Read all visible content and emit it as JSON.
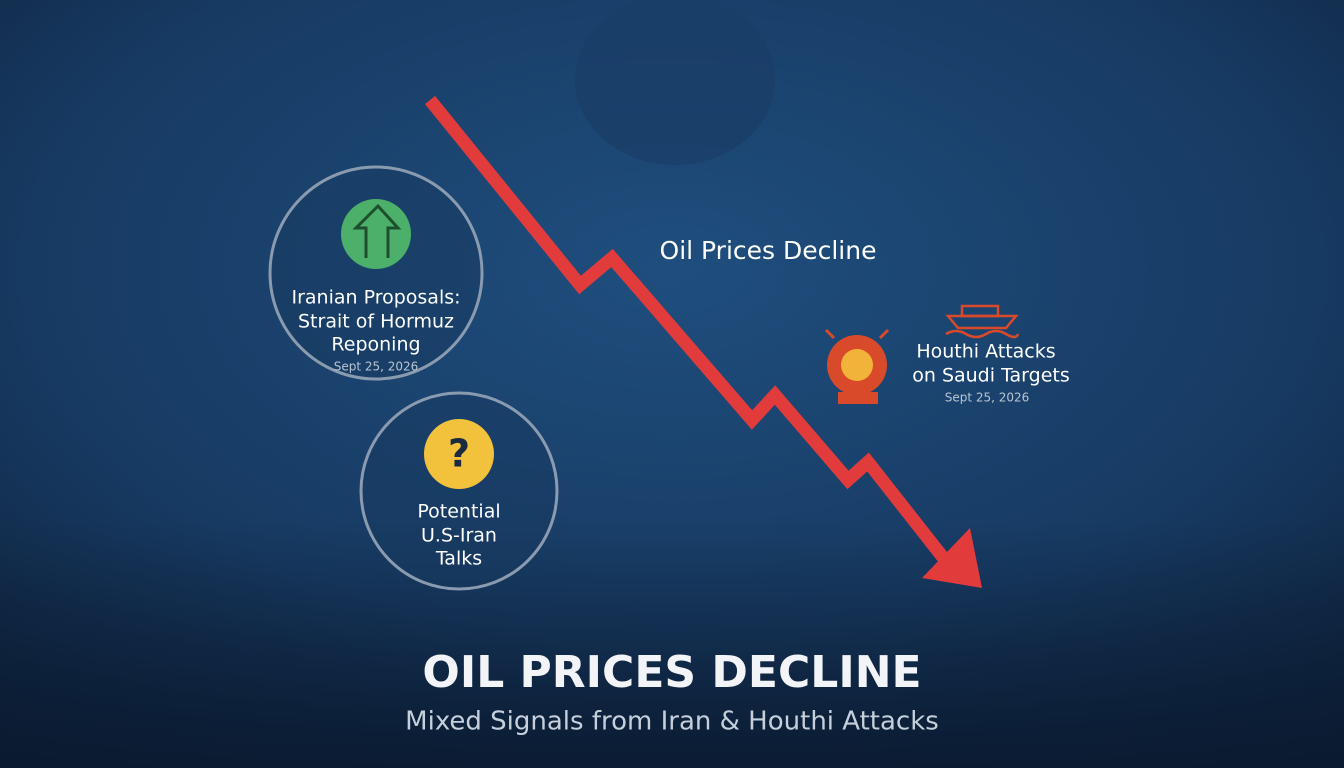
{
  "arrow_label": "Oil Prices Decline",
  "events": [
    {
      "lines": [
        "Iranian Proposals:",
        "Strait of Hormuz",
        "Reponing"
      ],
      "date": "Sept 25, 2026"
    },
    {
      "icon": "?",
      "lines": [
        "Potential",
        "U.S-Iran",
        "Talks"
      ]
    },
    {
      "lines": [
        "Houthi Attacks",
        "on Saudi Targets"
      ],
      "date": "Sept 25, 2026"
    }
  ],
  "footer": {
    "title": "OIL PRICES DECLINE",
    "subtitle": "Mixed Signals from Iran & Houthi Attacks"
  }
}
